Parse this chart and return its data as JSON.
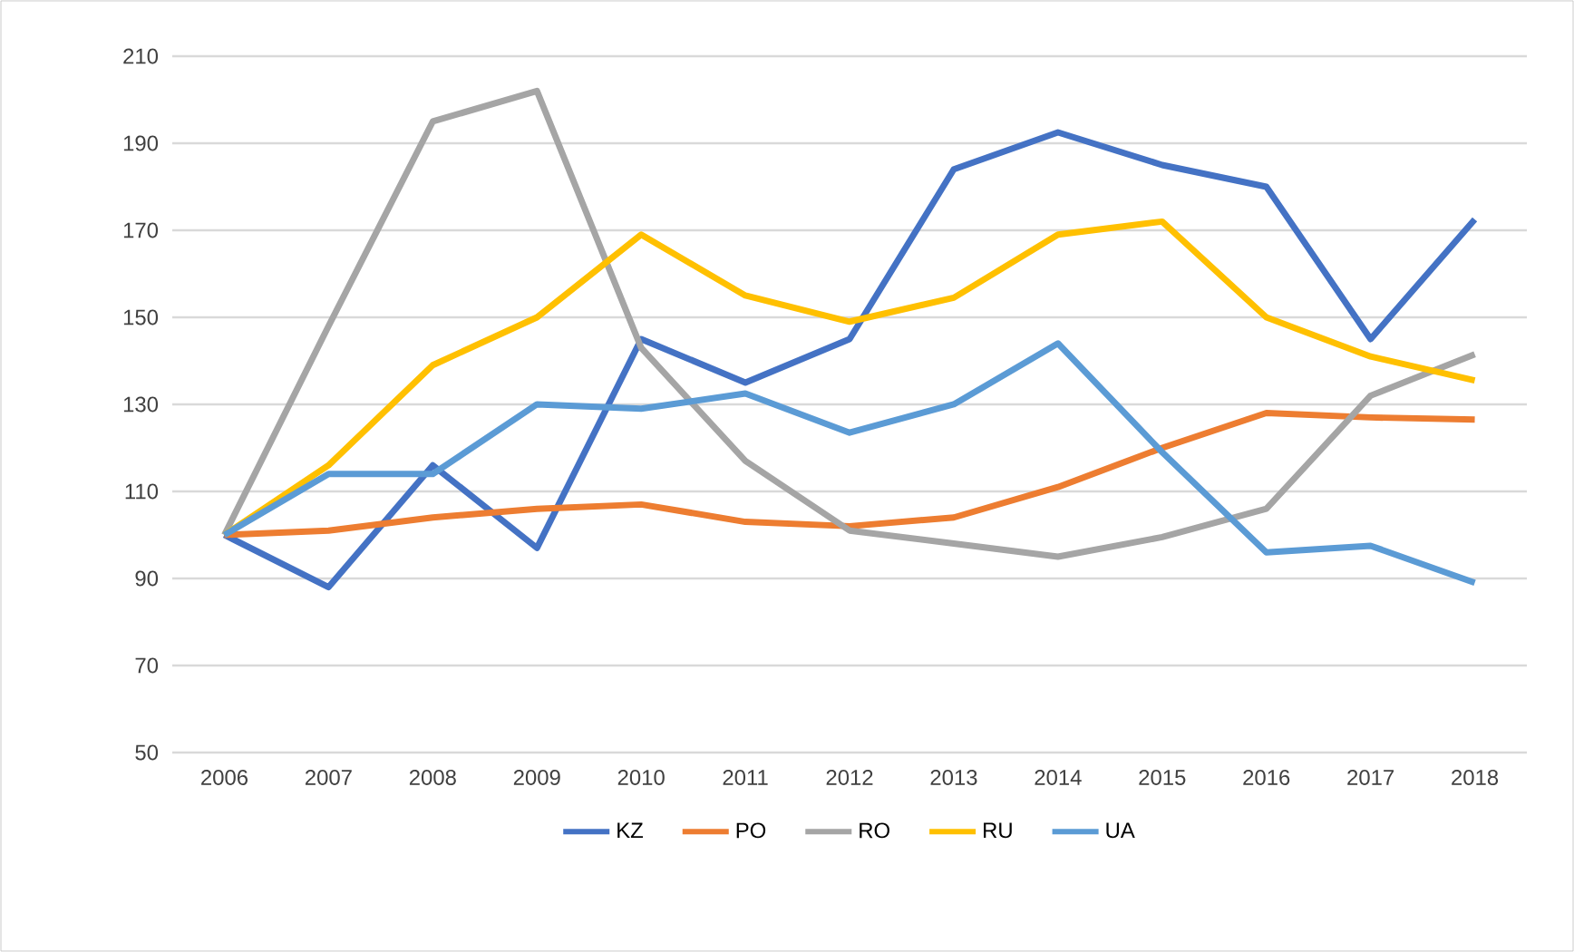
{
  "chart_data": {
    "type": "line",
    "categories": [
      "2006",
      "2007",
      "2008",
      "2009",
      "2010",
      "2011",
      "2012",
      "2013",
      "2014",
      "2015",
      "2016",
      "2017",
      "2018"
    ],
    "ylim": [
      50,
      210
    ],
    "yticks": [
      50,
      70,
      90,
      110,
      130,
      150,
      170,
      190,
      210
    ],
    "grid": "y",
    "legend": "bottom",
    "marker": "none",
    "line_style": "solid",
    "series": [
      {
        "name": "KZ",
        "color": "#4472c4",
        "values": [
          100,
          88,
          116,
          97,
          145,
          135,
          145,
          184,
          192.5,
          185,
          180,
          145,
          172.5
        ]
      },
      {
        "name": "PO",
        "color": "#ed7d31",
        "values": [
          100,
          101,
          104,
          106,
          107,
          103,
          102,
          104,
          111,
          120,
          128,
          127,
          126.5
        ]
      },
      {
        "name": "RO",
        "color": "#a5a5a5",
        "values": [
          100,
          148,
          195,
          202,
          143,
          117,
          101,
          98,
          95,
          99.5,
          106,
          132,
          141.5
        ]
      },
      {
        "name": "RU",
        "color": "#ffc000",
        "values": [
          100,
          116,
          139,
          150,
          169,
          155,
          149,
          154.5,
          169,
          172,
          150,
          141,
          135.5
        ]
      },
      {
        "name": "UA",
        "color": "#5b9bd5",
        "values": [
          100,
          114,
          114,
          130,
          129,
          132.5,
          123.5,
          130,
          144,
          119,
          96,
          97.5,
          89
        ]
      }
    ]
  }
}
